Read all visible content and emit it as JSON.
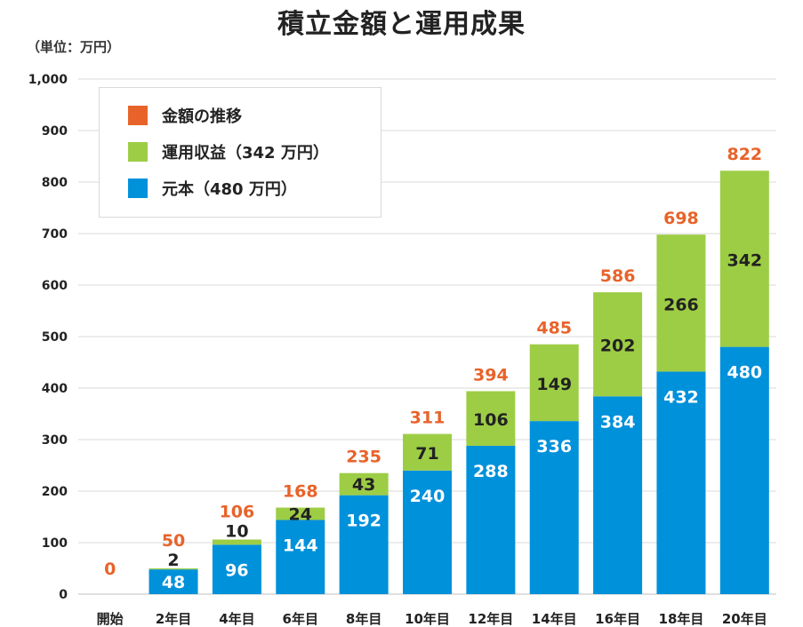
{
  "title": "積立金額と運用成果",
  "unit_note": "（単位：万円）",
  "colors": {
    "principal": "#0091db",
    "returns": "#9dcd45",
    "total_label": "#e8632a",
    "grid": "#d9d9d9",
    "axis_text": "#222222"
  },
  "legend": [
    {
      "label": "金額の推移",
      "color": "#e8632a"
    },
    {
      "label": "運用収益（342 万円）",
      "color": "#9dcd45"
    },
    {
      "label": "元本（480 万円）",
      "color": "#0091db"
    }
  ],
  "chart_data": {
    "type": "bar",
    "stacked": true,
    "title": "積立金額と運用成果",
    "categories": [
      "開始",
      "2年目",
      "4年目",
      "6年目",
      "8年目",
      "10年目",
      "12年目",
      "14年目",
      "16年目",
      "18年目",
      "20年目"
    ],
    "series": [
      {
        "name": "元本（480 万円）",
        "values": [
          0,
          48,
          96,
          144,
          192,
          240,
          288,
          336,
          384,
          432,
          480
        ]
      },
      {
        "name": "運用収益（342 万円）",
        "values": [
          0,
          2,
          10,
          24,
          43,
          71,
          106,
          149,
          202,
          266,
          342
        ]
      }
    ],
    "totals": [
      0,
      50,
      106,
      168,
      235,
      311,
      394,
      485,
      586,
      698,
      822
    ],
    "ylim": [
      0,
      1000
    ],
    "yticks": [
      "0",
      "100",
      "200",
      "300",
      "400",
      "500",
      "600",
      "700",
      "800",
      "900",
      "1,000"
    ],
    "grid": true,
    "legend_position": "top-left",
    "xlabel": "",
    "ylabel": ""
  }
}
